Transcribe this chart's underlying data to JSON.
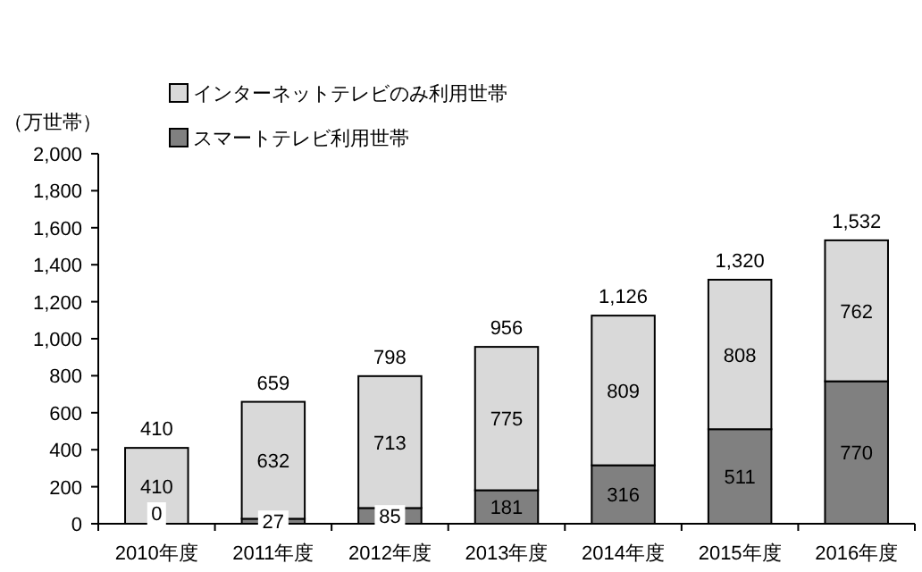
{
  "chart_data": {
    "type": "bar",
    "stacked": true,
    "ylabel": "（万世帯）",
    "categories": [
      "2010年度",
      "2011年度",
      "2012年度",
      "2013年度",
      "2014年度",
      "2015年度",
      "2016年度"
    ],
    "series": [
      {
        "name": "スマートテレビ利用世帯",
        "color": "#808080",
        "values": [
          0,
          27,
          85,
          181,
          316,
          511,
          770
        ],
        "value_labels": [
          "0",
          "27",
          "85",
          "181",
          "316",
          "511",
          "770"
        ]
      },
      {
        "name": "インターネットテレビのみ利用世帯",
        "color": "#d9d9d9",
        "values": [
          410,
          632,
          713,
          775,
          809,
          808,
          762
        ],
        "value_labels": [
          "410",
          "632",
          "713",
          "775",
          "809",
          "808",
          "762"
        ]
      }
    ],
    "totals": [
      "410",
      "659",
      "798",
      "956",
      "1,126",
      "1,320",
      "1,532"
    ],
    "ylim": [
      0,
      2000
    ],
    "yticks": [
      {
        "value": 0,
        "label": "0"
      },
      {
        "value": 200,
        "label": "200"
      },
      {
        "value": 400,
        "label": "400"
      },
      {
        "value": 600,
        "label": "600"
      },
      {
        "value": 800,
        "label": "800"
      },
      {
        "value": 1000,
        "label": "1,000"
      },
      {
        "value": 1200,
        "label": "1,200"
      },
      {
        "value": 1400,
        "label": "1,400"
      },
      {
        "value": 1600,
        "label": "1,600"
      },
      {
        "value": 1800,
        "label": "1,800"
      },
      {
        "value": 2000,
        "label": "2,000"
      }
    ],
    "grid": false,
    "legend": "top left"
  }
}
